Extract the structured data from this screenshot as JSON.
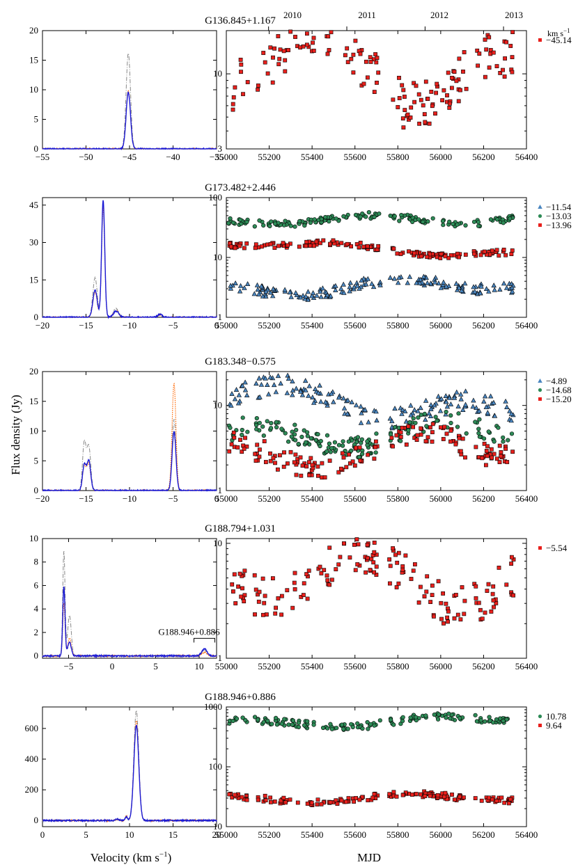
{
  "figure": {
    "ylabel": "Flux density (Jy)",
    "xlabel_left": "Velocity (km s",
    "xlabel_left_sup": "−1",
    "xlabel_left_end": ")",
    "xlabel_right": "MJD",
    "year_ticks": [
      "2010",
      "2011",
      "2012",
      "2013"
    ],
    "unit_label": "km s",
    "unit_sup": "−1",
    "colors": {
      "red": "#e8201c",
      "green": "#2e8b57",
      "blue": "#4a86c0",
      "spec_solid": "#1a1ad6",
      "spec_dashdot": "#888888",
      "spec_dotted": "#ff6600"
    }
  },
  "chart_data": [
    {
      "panel": 1,
      "type": "line",
      "title": "G136.845+1.167",
      "xlim": [
        -55,
        -35
      ],
      "ylim": [
        0,
        20
      ],
      "xticks": [
        -55,
        -50,
        -45,
        -40,
        -35
      ],
      "yticks": [
        0,
        5,
        10,
        15,
        20
      ],
      "peaks": [
        {
          "v": -45.14,
          "solid": 9.6,
          "dashdot": 16.2,
          "dotted": 9.8,
          "w": 0.25
        }
      ],
      "annotation": ""
    },
    {
      "panel": 1,
      "type": "scatter",
      "xlim": [
        55000,
        56400
      ],
      "ylim": [
        3,
        20
      ],
      "log": true,
      "xticks": [
        55000,
        55200,
        55400,
        55600,
        55800,
        56000,
        56200,
        56400
      ],
      "yticks": [
        3,
        10
      ],
      "series": [
        {
          "name": "−45.14",
          "marker": "square",
          "color": "#e8201c",
          "level": 10.5,
          "scatter": 0.18,
          "trend": -0.2,
          "seed": 11
        }
      ]
    },
    {
      "panel": 2,
      "type": "line",
      "title": "G173.482+2.446",
      "xlim": [
        -20,
        0
      ],
      "ylim": [
        0,
        48
      ],
      "xticks": [
        -20,
        -15,
        -10,
        -5,
        0
      ],
      "yticks": [
        0,
        15,
        30,
        45
      ],
      "peaks": [
        {
          "v": -13.96,
          "solid": 11,
          "dashdot": 16,
          "dotted": 10,
          "w": 0.25
        },
        {
          "v": -13.03,
          "solid": 47,
          "dashdot": 46,
          "dotted": 44,
          "w": 0.18
        },
        {
          "v": -11.54,
          "solid": 2.5,
          "dashdot": 3.5,
          "dotted": 2.5,
          "w": 0.3
        },
        {
          "v": -6.5,
          "solid": 1.2,
          "dashdot": 1.2,
          "dotted": 1.0,
          "w": 0.25
        }
      ],
      "annotation": ""
    },
    {
      "panel": 2,
      "type": "scatter",
      "xlim": [
        55000,
        56400
      ],
      "ylim": [
        1,
        100
      ],
      "log": true,
      "xticks": [
        55000,
        55200,
        55400,
        55600,
        55800,
        56000,
        56200,
        56400
      ],
      "yticks": [
        1,
        10,
        100
      ],
      "series": [
        {
          "name": "−11.54",
          "marker": "triangle",
          "color": "#4a86c0",
          "level": 3.3,
          "scatter": 0.09,
          "trend": 0.15,
          "seed": 21
        },
        {
          "name": "−13.03",
          "marker": "circle",
          "color": "#2e8b57",
          "level": 43,
          "scatter": 0.06,
          "trend": 0.02,
          "seed": 22
        },
        {
          "name": "−13.96",
          "marker": "square",
          "color": "#e8201c",
          "level": 14,
          "scatter": 0.05,
          "trend": -0.25,
          "seed": 23
        }
      ]
    },
    {
      "panel": 3,
      "type": "line",
      "title": "G183.348−0.575",
      "xlim": [
        -20,
        0
      ],
      "ylim": [
        0,
        20
      ],
      "xticks": [
        -20,
        -15,
        -10,
        -5,
        0
      ],
      "yticks": [
        0,
        5,
        10,
        15,
        20
      ],
      "peaks": [
        {
          "v": -15.2,
          "solid": 4.3,
          "dashdot": 8.0,
          "dotted": 4.0,
          "w": 0.2
        },
        {
          "v": -14.68,
          "solid": 5.0,
          "dashdot": 7.5,
          "dotted": 4.5,
          "w": 0.22
        },
        {
          "v": -4.89,
          "solid": 10.0,
          "dashdot": 12.0,
          "dotted": 18.0,
          "w": 0.22
        }
      ],
      "annotation": ""
    },
    {
      "panel": 3,
      "type": "scatter",
      "xlim": [
        55000,
        56400
      ],
      "ylim": [
        1,
        25
      ],
      "log": true,
      "xticks": [
        55000,
        55200,
        55400,
        55600,
        55800,
        56000,
        56200,
        56400
      ],
      "yticks": [
        1,
        10
      ],
      "series": [
        {
          "name": "−4.89",
          "marker": "triangle",
          "color": "#4a86c0",
          "level": 10,
          "scatter": 0.12,
          "trend": -0.3,
          "seed": 31
        },
        {
          "name": "−14.68",
          "marker": "circle",
          "color": "#2e8b57",
          "level": 4.5,
          "scatter": 0.12,
          "trend": 0.1,
          "seed": 32
        },
        {
          "name": "−15.20",
          "marker": "square",
          "color": "#e8201c",
          "level": 3.0,
          "scatter": 0.14,
          "trend": 0.2,
          "seed": 33
        }
      ]
    },
    {
      "panel": 4,
      "type": "line",
      "title": "G188.794+1.031",
      "xlim": [
        -8,
        12
      ],
      "ylim": [
        -0.2,
        10
      ],
      "xticks": [
        -5,
        0,
        5,
        10
      ],
      "yticks": [
        0,
        2,
        4,
        6,
        8,
        10
      ],
      "peaks": [
        {
          "v": -5.54,
          "solid": 5.9,
          "dashdot": 9.0,
          "dotted": 4.5,
          "w": 0.13
        },
        {
          "v": -4.9,
          "solid": 1.2,
          "dashdot": 3.5,
          "dotted": 1.5,
          "w": 0.2
        },
        {
          "v": 10.6,
          "solid": 0.6,
          "dashdot": 0.5,
          "dotted": 0.3,
          "w": 0.3
        }
      ],
      "annotation": "G188.946+0.886"
    },
    {
      "panel": 4,
      "type": "scatter",
      "xlim": [
        55000,
        56400
      ],
      "ylim": [
        1,
        11
      ],
      "log": true,
      "xticks": [
        55000,
        55200,
        55400,
        55600,
        55800,
        56000,
        56200,
        56400
      ],
      "yticks": [
        1,
        10
      ],
      "series": [
        {
          "name": "−5.54",
          "marker": "square",
          "color": "#e8201c",
          "level": 5.0,
          "scatter": 0.18,
          "trend": -0.1,
          "seed": 41
        }
      ]
    },
    {
      "panel": 5,
      "type": "line",
      "title": "G188.946+0.886",
      "xlim": [
        0,
        20
      ],
      "ylim": [
        -40,
        740
      ],
      "xticks": [
        0,
        5,
        10,
        15,
        20
      ],
      "yticks": [
        0,
        200,
        400,
        600
      ],
      "peaks": [
        {
          "v": 10.78,
          "solid": 620,
          "dashdot": 720,
          "dotted": 650,
          "w": 0.28
        },
        {
          "v": 9.64,
          "solid": 25,
          "dashdot": 30,
          "dotted": 28,
          "w": 0.12
        },
        {
          "v": 8.6,
          "solid": 8,
          "dashdot": 8,
          "dotted": 6,
          "w": 0.2
        }
      ],
      "annotation": ""
    },
    {
      "panel": 5,
      "type": "scatter",
      "xlim": [
        55000,
        56400
      ],
      "ylim": [
        10,
        1000
      ],
      "log": true,
      "xticks": [
        55000,
        55200,
        55400,
        55600,
        55800,
        56000,
        56200,
        56400
      ],
      "yticks": [
        10,
        100,
        1000
      ],
      "series": [
        {
          "name": "10.78",
          "marker": "circle",
          "color": "#2e8b57",
          "level": 560,
          "scatter": 0.06,
          "trend": 0.1,
          "seed": 51
        },
        {
          "name": "9.64",
          "marker": "square",
          "color": "#e8201c",
          "level": 30,
          "scatter": 0.05,
          "trend": 0.05,
          "seed": 52
        }
      ]
    }
  ]
}
